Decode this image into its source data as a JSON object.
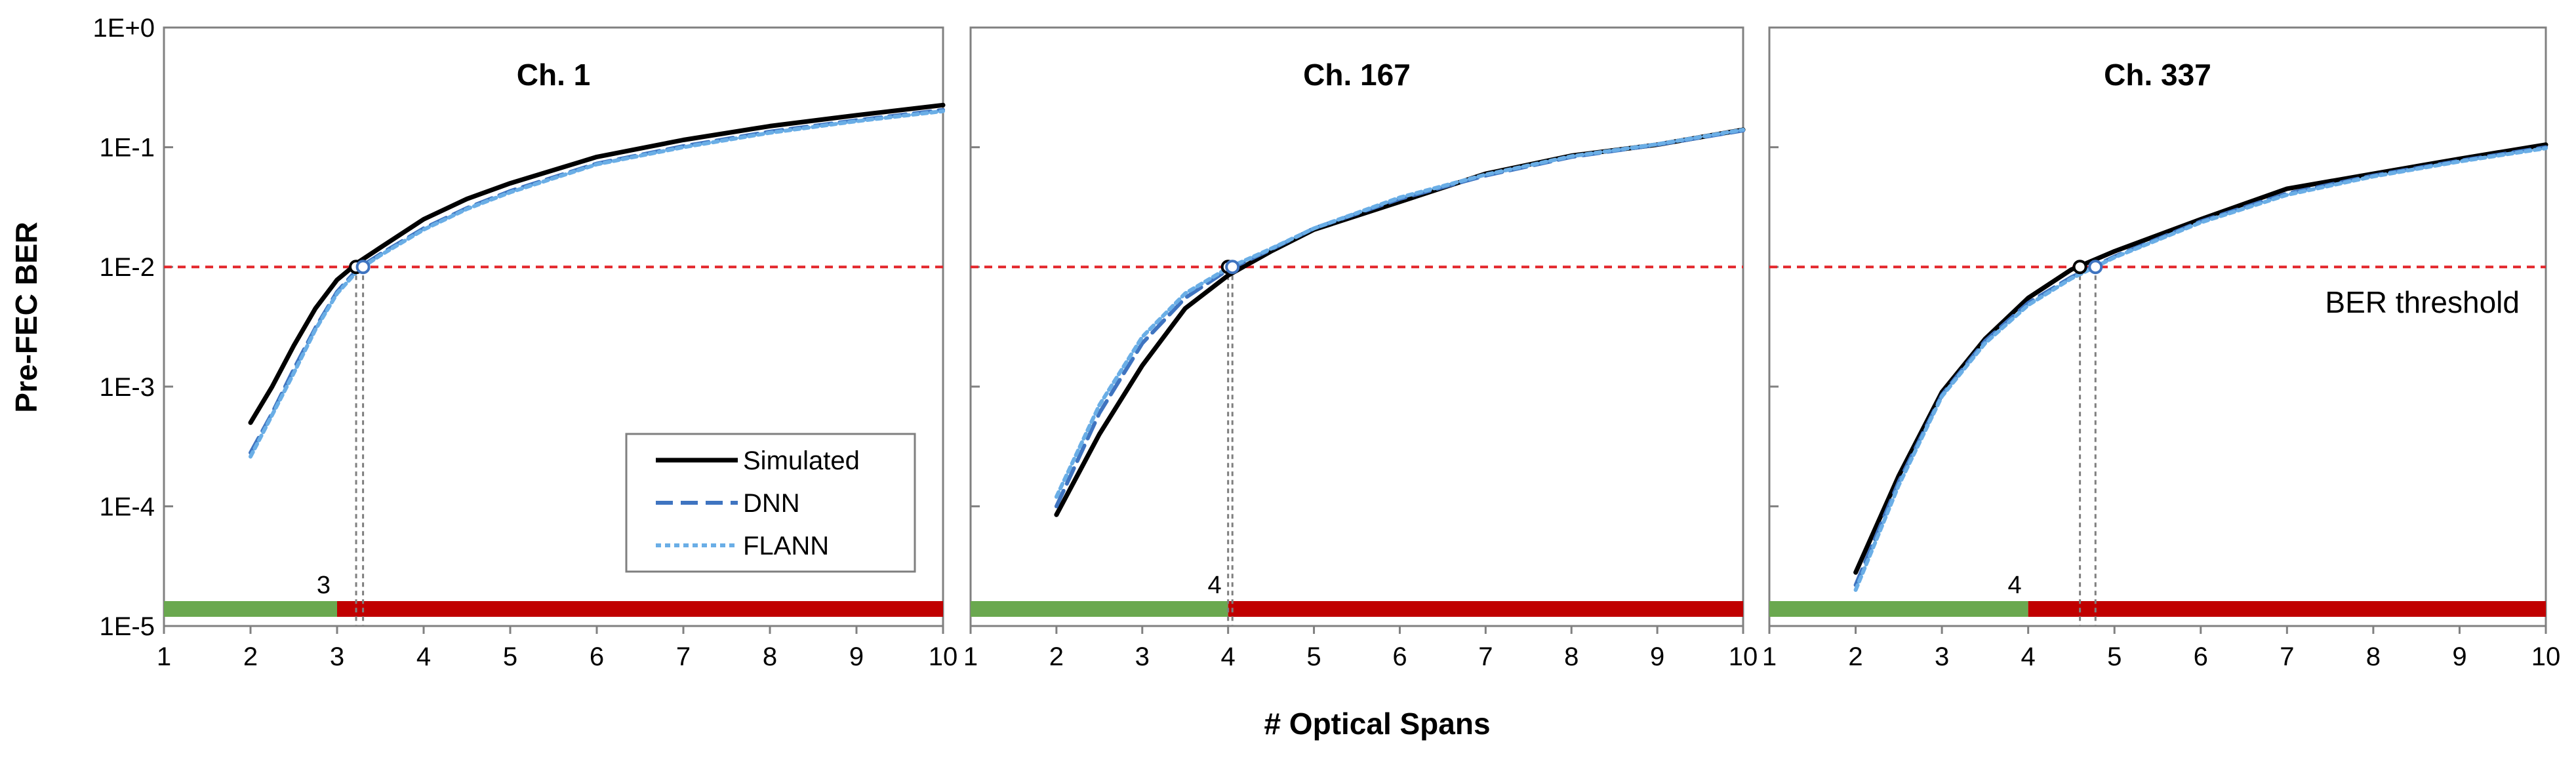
{
  "chart_data": {
    "type": "line",
    "ylabel": "Pre-FEC BER",
    "xlabel": "# Optical Spans",
    "yscale": "log",
    "ylim": [
      1e-05,
      1
    ],
    "yticks": [
      "1E+0",
      "1E-1",
      "1E-2",
      "1E-3",
      "1E-4",
      "1E-5"
    ],
    "xlim": [
      1,
      10
    ],
    "xticks": [
      "1",
      "2",
      "3",
      "4",
      "5",
      "6",
      "7",
      "8",
      "9",
      "10"
    ],
    "threshold": {
      "value": 0.01,
      "label": "BER threshold",
      "color": "#e3262b"
    },
    "legend": {
      "position": "bottom-right of first panel",
      "entries": [
        "Simulated",
        "DNN",
        "FLANN"
      ]
    },
    "colors": {
      "simulated": "#000000",
      "dnn": "#3f74c0",
      "flann": "#6aaee6",
      "bar_ok": "#6aa84f",
      "bar_fail": "#c00000",
      "threshold": "#e3262b",
      "frame": "#808080"
    },
    "panels": [
      {
        "title": "Ch. 1",
        "bar_split": 3,
        "bar_label": "3",
        "crossings": [
          3.22,
          3.3
        ],
        "series": [
          {
            "name": "Simulated",
            "x": [
              2,
              2.25,
              2.5,
              2.75,
              3,
              3.25,
              3.5,
              4,
              4.5,
              5,
              6,
              7,
              8,
              9,
              10
            ],
            "y": [
              0.0005,
              0.001,
              0.0022,
              0.0045,
              0.0078,
              0.011,
              0.0145,
              0.025,
              0.037,
              0.05,
              0.083,
              0.115,
              0.15,
              0.185,
              0.225
            ]
          },
          {
            "name": "DNN",
            "x": [
              2,
              2.25,
              2.5,
              2.75,
              3,
              3.25,
              3.5,
              4,
              4.5,
              5,
              6,
              7,
              8,
              9,
              10
            ],
            "y": [
              0.00028,
              0.0006,
              0.0014,
              0.0031,
              0.0062,
              0.0098,
              0.0128,
              0.021,
              0.031,
              0.043,
              0.073,
              0.102,
              0.135,
              0.168,
              0.205
            ]
          },
          {
            "name": "FLANN",
            "x": [
              2,
              2.25,
              2.5,
              2.75,
              3,
              3.25,
              3.5,
              4,
              4.5,
              5,
              6,
              7,
              8,
              9,
              10
            ],
            "y": [
              0.00026,
              0.00058,
              0.0013,
              0.003,
              0.006,
              0.0095,
              0.0125,
              0.0205,
              0.0305,
              0.042,
              0.072,
              0.1,
              0.132,
              0.165,
              0.2
            ]
          }
        ]
      },
      {
        "title": "Ch. 167",
        "bar_split": 4,
        "bar_label": "4",
        "crossings": [
          4.0,
          4.05
        ],
        "series": [
          {
            "name": "Simulated",
            "x": [
              2,
              2.5,
              3,
              3.5,
              4,
              4.5,
              5,
              6,
              7,
              8,
              9,
              10
            ],
            "y": [
              8.5e-05,
              0.0004,
              0.0015,
              0.0045,
              0.0085,
              0.0135,
              0.0205,
              0.035,
              0.06,
              0.085,
              0.105,
              0.14
            ]
          },
          {
            "name": "DNN",
            "x": [
              2,
              2.5,
              3,
              3.5,
              4,
              4.5,
              5,
              6,
              7,
              8,
              9,
              10
            ],
            "y": [
              0.0001,
              0.0006,
              0.0023,
              0.0055,
              0.0095,
              0.014,
              0.021,
              0.037,
              0.058,
              0.083,
              0.105,
              0.138
            ]
          },
          {
            "name": "FLANN",
            "x": [
              2,
              2.5,
              3,
              3.5,
              4,
              4.5,
              5,
              6,
              7,
              8,
              9,
              10
            ],
            "y": [
              0.00012,
              0.0007,
              0.0026,
              0.006,
              0.0098,
              0.0142,
              0.021,
              0.038,
              0.059,
              0.084,
              0.106,
              0.14
            ]
          }
        ]
      },
      {
        "title": "Ch. 337",
        "bar_split": 4,
        "bar_label": "4",
        "crossings": [
          4.6,
          4.78
        ],
        "series": [
          {
            "name": "Simulated",
            "x": [
              2,
              2.5,
              3,
              3.5,
              4,
              4.5,
              5,
              6,
              7,
              8,
              9,
              10
            ],
            "y": [
              2.8e-05,
              0.00018,
              0.0009,
              0.0025,
              0.0055,
              0.0095,
              0.0135,
              0.025,
              0.045,
              0.06,
              0.08,
              0.105
            ]
          },
          {
            "name": "DNN",
            "x": [
              2,
              2.5,
              3,
              3.5,
              4,
              4.5,
              5,
              6,
              7,
              8,
              9,
              10
            ],
            "y": [
              2.2e-05,
              0.00016,
              0.00085,
              0.0024,
              0.005,
              0.0082,
              0.0122,
              0.024,
              0.041,
              0.058,
              0.077,
              0.1
            ]
          },
          {
            "name": "FLANN",
            "x": [
              2,
              2.5,
              3,
              3.5,
              4,
              4.5,
              5,
              6,
              7,
              8,
              9,
              10
            ],
            "y": [
              2e-05,
              0.00015,
              0.00083,
              0.0023,
              0.0048,
              0.008,
              0.012,
              0.0235,
              0.04,
              0.057,
              0.076,
              0.098
            ]
          }
        ]
      }
    ]
  }
}
